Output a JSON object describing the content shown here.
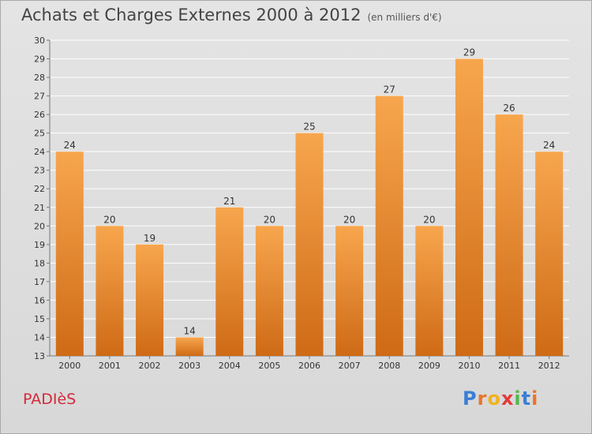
{
  "header": {
    "title": "Achats et Charges Externes 2000 à 2012",
    "subtitle": "(en milliers d'€)"
  },
  "footer": {
    "city": "PADIèS",
    "brand": "Proxiti",
    "brand_letters": [
      {
        "ch": "P",
        "color": "#3a7fd5"
      },
      {
        "ch": "r",
        "color": "#e9752a"
      },
      {
        "ch": "o",
        "color": "#f2b21c"
      },
      {
        "ch": "x",
        "color": "#e43a3a"
      },
      {
        "ch": "i",
        "color": "#57b64a"
      },
      {
        "ch": "t",
        "color": "#3a7fd5"
      },
      {
        "ch": "i",
        "color": "#e9752a"
      }
    ]
  },
  "colors": {
    "bar_top": "#f7a64e",
    "bar_bottom": "#cf6a16",
    "grid": "#ffffff",
    "axis_text": "#333333"
  },
  "chart_data": {
    "type": "bar",
    "title": "Achats et Charges Externes 2000 à 2012",
    "subtitle": "(en milliers d'€)",
    "categories": [
      "2000",
      "2001",
      "2002",
      "2003",
      "2004",
      "2005",
      "2006",
      "2007",
      "2008",
      "2009",
      "2010",
      "2011",
      "2012"
    ],
    "values": [
      24,
      20,
      19,
      14,
      21,
      20,
      25,
      20,
      27,
      20,
      29,
      26,
      24
    ],
    "ylim": [
      13,
      30
    ],
    "yticks": [
      13,
      14,
      15,
      16,
      17,
      18,
      19,
      20,
      21,
      22,
      23,
      24,
      25,
      26,
      27,
      28,
      29,
      30
    ],
    "grid": true,
    "xlabel": "",
    "ylabel": ""
  }
}
